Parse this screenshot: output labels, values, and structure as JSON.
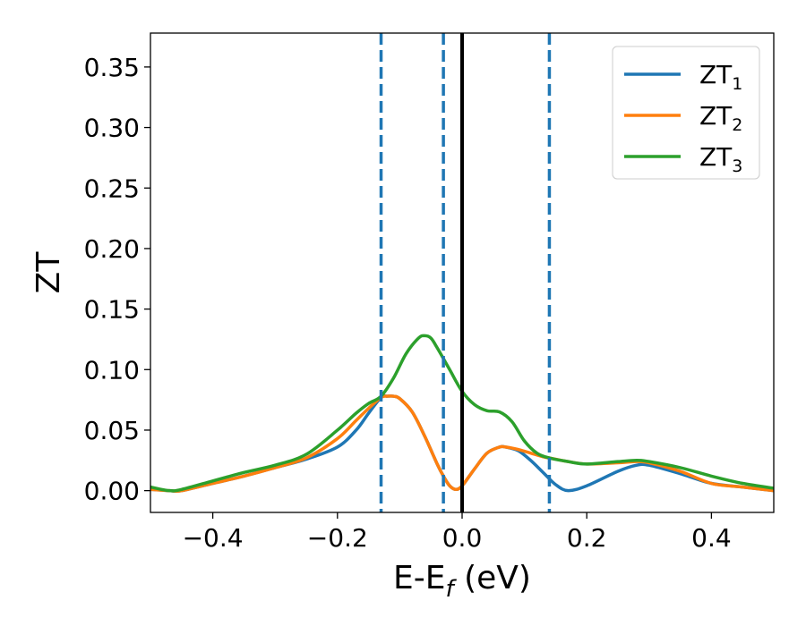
{
  "chart_data": {
    "type": "line",
    "xlabel": "E-E",
    "xlabel_sub": "f",
    "xlabel_unit": " (eV)",
    "ylabel": "ZT",
    "xlim": [
      -0.5,
      0.5
    ],
    "ylim": [
      -0.018,
      0.378
    ],
    "xticks": [
      -0.4,
      -0.2,
      0.0,
      0.2,
      0.4
    ],
    "xtick_labels": [
      "−0.4",
      "−0.2",
      "0.0",
      "0.2",
      "0.4"
    ],
    "yticks": [
      0.0,
      0.05,
      0.1,
      0.15,
      0.2,
      0.25,
      0.3,
      0.35
    ],
    "ytick_labels": [
      "0.00",
      "0.05",
      "0.10",
      "0.15",
      "0.20",
      "0.25",
      "0.30",
      "0.35"
    ],
    "grid": false,
    "legend_position": "top-right",
    "vlines": [
      {
        "x": -0.13,
        "style": "dashed",
        "color": "#1f77b4"
      },
      {
        "x": -0.03,
        "style": "dashed",
        "color": "#1f77b4"
      },
      {
        "x": 0.0,
        "style": "solid",
        "color": "#000000"
      },
      {
        "x": 0.14,
        "style": "dashed",
        "color": "#1f77b4"
      }
    ],
    "series": [
      {
        "name": "ZT",
        "name_sub": "1",
        "color": "#1f77b4",
        "x": [
          -0.5,
          -0.47,
          -0.45,
          -0.4,
          -0.35,
          -0.3,
          -0.25,
          -0.2,
          -0.17,
          -0.15,
          -0.13,
          -0.12,
          -0.11,
          -0.1,
          -0.08,
          -0.06,
          -0.04,
          -0.03,
          -0.02,
          -0.01,
          0.0,
          0.02,
          0.04,
          0.06,
          0.07,
          0.09,
          0.11,
          0.13,
          0.15,
          0.17,
          0.2,
          0.25,
          0.28,
          0.3,
          0.35,
          0.4,
          0.45,
          0.5
        ],
        "y": [
          0.001,
          0.0,
          0.0,
          0.006,
          0.012,
          0.019,
          0.026,
          0.036,
          0.05,
          0.064,
          0.077,
          0.078,
          0.078,
          0.076,
          0.065,
          0.045,
          0.022,
          0.012,
          0.004,
          0.001,
          0.004,
          0.018,
          0.031,
          0.036,
          0.036,
          0.033,
          0.025,
          0.015,
          0.005,
          0.0,
          0.004,
          0.016,
          0.021,
          0.021,
          0.014,
          0.006,
          0.003,
          0.0
        ]
      },
      {
        "name": "ZT",
        "name_sub": "2",
        "color": "#ff7f0e",
        "x": [
          -0.5,
          -0.47,
          -0.45,
          -0.4,
          -0.35,
          -0.3,
          -0.25,
          -0.2,
          -0.17,
          -0.15,
          -0.13,
          -0.12,
          -0.11,
          -0.1,
          -0.08,
          -0.06,
          -0.04,
          -0.03,
          -0.02,
          -0.01,
          0.0,
          0.02,
          0.04,
          0.06,
          0.07,
          0.09,
          0.11,
          0.13,
          0.15,
          0.17,
          0.2,
          0.25,
          0.28,
          0.3,
          0.35,
          0.4,
          0.45,
          0.5
        ],
        "y": [
          0.001,
          0.0,
          0.0,
          0.006,
          0.012,
          0.019,
          0.027,
          0.043,
          0.058,
          0.068,
          0.077,
          0.078,
          0.078,
          0.076,
          0.065,
          0.045,
          0.022,
          0.012,
          0.004,
          0.001,
          0.004,
          0.018,
          0.031,
          0.036,
          0.036,
          0.034,
          0.031,
          0.028,
          0.026,
          0.024,
          0.022,
          0.023,
          0.024,
          0.023,
          0.016,
          0.006,
          0.003,
          0.0
        ]
      },
      {
        "name": "ZT",
        "name_sub": "3",
        "color": "#2ca02c",
        "x": [
          -0.5,
          -0.47,
          -0.45,
          -0.4,
          -0.35,
          -0.3,
          -0.25,
          -0.2,
          -0.17,
          -0.15,
          -0.13,
          -0.11,
          -0.09,
          -0.07,
          -0.06,
          -0.05,
          -0.04,
          -0.02,
          0.0,
          0.02,
          0.04,
          0.06,
          0.08,
          0.1,
          0.12,
          0.14,
          0.17,
          0.2,
          0.25,
          0.28,
          0.3,
          0.35,
          0.4,
          0.45,
          0.5
        ],
        "y": [
          0.003,
          0.0,
          0.001,
          0.008,
          0.015,
          0.021,
          0.03,
          0.05,
          0.064,
          0.072,
          0.078,
          0.093,
          0.113,
          0.126,
          0.128,
          0.126,
          0.118,
          0.1,
          0.082,
          0.071,
          0.066,
          0.065,
          0.057,
          0.041,
          0.031,
          0.027,
          0.024,
          0.022,
          0.024,
          0.025,
          0.024,
          0.019,
          0.012,
          0.006,
          0.002
        ]
      }
    ]
  }
}
